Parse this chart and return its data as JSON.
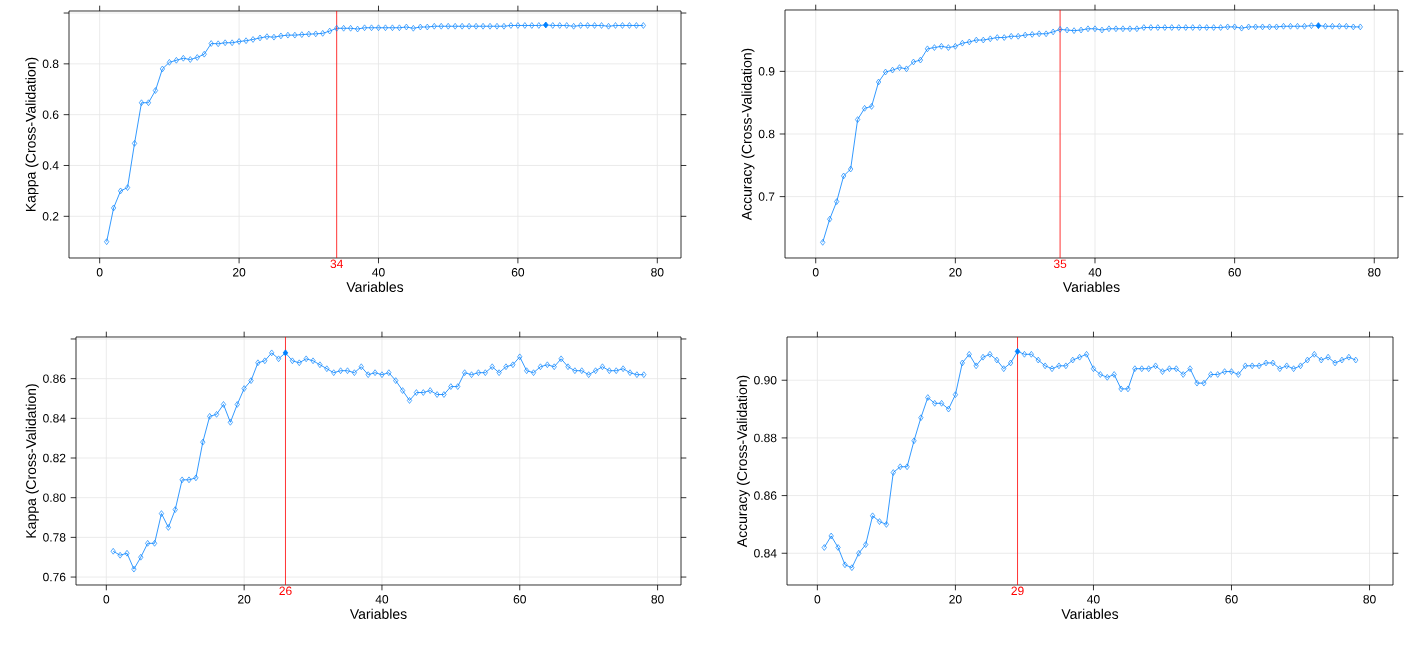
{
  "chart_data": [
    {
      "type": "line",
      "ylabel": "Kappa (Cross-Validation)",
      "xlabel": "Variables",
      "marker": "diamond",
      "line_style": "solid",
      "grid": true,
      "x": [
        1,
        2,
        3,
        4,
        5,
        6,
        7,
        8,
        9,
        10,
        11,
        12,
        13,
        14,
        15,
        16,
        17,
        18,
        19,
        20,
        21,
        22,
        23,
        24,
        25,
        26,
        27,
        28,
        29,
        30,
        31,
        32,
        33,
        34,
        35,
        36,
        37,
        38,
        39,
        40,
        41,
        42,
        43,
        44,
        45,
        46,
        47,
        48,
        49,
        50,
        51,
        52,
        53,
        54,
        55,
        56,
        57,
        58,
        59,
        60,
        61,
        62,
        63,
        64,
        65,
        66,
        67,
        68,
        69,
        70,
        71,
        72,
        73,
        74,
        75,
        76,
        77,
        78
      ],
      "xlim": [
        -4.4,
        83.4
      ],
      "xticks": [
        0,
        20,
        40,
        60,
        80
      ],
      "ylim": [
        0.036,
        1.008
      ],
      "yticks": [
        0.2,
        0.4,
        0.6,
        0.8,
        {
          "value": 1.0,
          "label": null
        }
      ],
      "series": [
        {
          "color": "#0080ff",
          "values": [
            0.1,
            0.233,
            0.3,
            0.313,
            0.487,
            0.647,
            0.647,
            0.695,
            0.78,
            0.806,
            0.814,
            0.822,
            0.817,
            0.825,
            0.838,
            0.88,
            0.879,
            0.883,
            0.883,
            0.888,
            0.891,
            0.896,
            0.902,
            0.907,
            0.905,
            0.91,
            0.913,
            0.913,
            0.915,
            0.917,
            0.918,
            0.92,
            0.929,
            0.94,
            0.94,
            0.94,
            0.937,
            0.942,
            0.942,
            0.942,
            0.942,
            0.942,
            0.942,
            0.945,
            0.94,
            0.945,
            0.945,
            0.948,
            0.948,
            0.948,
            0.948,
            0.948,
            0.948,
            0.948,
            0.948,
            0.948,
            0.948,
            0.948,
            0.951,
            0.951,
            0.951,
            0.951,
            0.951,
            0.953,
            0.951,
            0.951,
            0.951,
            0.948,
            0.951,
            0.951,
            0.951,
            0.951,
            0.948,
            0.951,
            0.951,
            0.951,
            0.951,
            0.951
          ]
        },
        {
          "type": "scatter",
          "color": "#0080ff",
          "x": [
            64
          ],
          "values": [
            0.953
          ]
        }
      ],
      "ref_lines": [
        {
          "axis": "x",
          "value": 34,
          "label": "34",
          "color": "#ff0000"
        }
      ]
    },
    {
      "type": "line",
      "ylabel": "Accuracy (Cross-Validation)",
      "xlabel": "Variables",
      "marker": "diamond",
      "line_style": "solid",
      "grid": true,
      "x": [
        1,
        2,
        3,
        4,
        5,
        6,
        7,
        8,
        9,
        10,
        11,
        12,
        13,
        14,
        15,
        16,
        17,
        18,
        19,
        20,
        21,
        22,
        23,
        24,
        25,
        26,
        27,
        28,
        29,
        30,
        31,
        32,
        33,
        34,
        35,
        36,
        37,
        38,
        39,
        40,
        41,
        42,
        43,
        44,
        45,
        46,
        47,
        48,
        49,
        50,
        51,
        52,
        53,
        54,
        55,
        56,
        57,
        58,
        59,
        60,
        61,
        62,
        63,
        64,
        65,
        66,
        67,
        68,
        69,
        70,
        71,
        72,
        73,
        74,
        75,
        76,
        77,
        78
      ],
      "xlim": [
        -4.4,
        83.4
      ],
      "xticks": [
        0,
        20,
        40,
        60,
        80
      ],
      "ylim": [
        0.602,
        0.998
      ],
      "yticks": [
        0.7,
        0.8,
        0.9
      ],
      "series": [
        {
          "color": "#0080ff",
          "values": [
            0.627,
            0.664,
            0.692,
            0.733,
            0.744,
            0.823,
            0.841,
            0.844,
            0.883,
            0.899,
            0.902,
            0.906,
            0.904,
            0.915,
            0.918,
            0.936,
            0.938,
            0.94,
            0.938,
            0.94,
            0.945,
            0.947,
            0.95,
            0.95,
            0.952,
            0.954,
            0.954,
            0.956,
            0.956,
            0.958,
            0.959,
            0.96,
            0.96,
            0.963,
            0.967,
            0.966,
            0.965,
            0.966,
            0.968,
            0.968,
            0.966,
            0.968,
            0.968,
            0.968,
            0.968,
            0.968,
            0.97,
            0.97,
            0.97,
            0.97,
            0.97,
            0.97,
            0.97,
            0.97,
            0.97,
            0.97,
            0.97,
            0.97,
            0.971,
            0.971,
            0.969,
            0.971,
            0.971,
            0.971,
            0.971,
            0.971,
            0.972,
            0.972,
            0.972,
            0.972,
            0.973,
            0.973,
            0.972,
            0.972,
            0.972,
            0.972,
            0.971,
            0.971
          ]
        },
        {
          "type": "scatter",
          "color": "#0080ff",
          "x": [
            72
          ],
          "values": [
            0.973
          ]
        }
      ],
      "ref_lines": [
        {
          "axis": "x",
          "value": 35,
          "label": "35",
          "color": "#ff0000"
        }
      ]
    },
    {
      "type": "line",
      "ylabel": "Kappa (Cross-Validation)",
      "xlabel": "Variables",
      "marker": "diamond",
      "line_style": "solid",
      "grid": true,
      "x": [
        1,
        2,
        3,
        4,
        5,
        6,
        7,
        8,
        9,
        10,
        11,
        12,
        13,
        14,
        15,
        16,
        17,
        18,
        19,
        20,
        21,
        22,
        23,
        24,
        25,
        26,
        27,
        28,
        29,
        30,
        31,
        32,
        33,
        34,
        35,
        36,
        37,
        38,
        39,
        40,
        41,
        42,
        43,
        44,
        45,
        46,
        47,
        48,
        49,
        50,
        51,
        52,
        53,
        54,
        55,
        56,
        57,
        58,
        59,
        60,
        61,
        62,
        63,
        64,
        65,
        66,
        67,
        68,
        69,
        70,
        71,
        72,
        73,
        74,
        75,
        76,
        77,
        78
      ],
      "xlim": [
        -4.4,
        83.4
      ],
      "xticks": [
        0,
        20,
        40,
        60,
        80
      ],
      "ylim": [
        0.756,
        0.881
      ],
      "yticks": [
        0.76,
        0.78,
        {
          "value": 0.8,
          "label": "0.80"
        },
        0.82,
        0.84,
        0.86,
        {
          "value": 0.88,
          "label": null
        }
      ],
      "series": [
        {
          "color": "#0080ff",
          "values": [
            0.773,
            0.771,
            0.772,
            0.764,
            0.77,
            0.777,
            0.777,
            0.792,
            0.785,
            0.794,
            0.809,
            0.809,
            0.81,
            0.828,
            0.841,
            0.842,
            0.847,
            0.838,
            0.847,
            0.855,
            0.859,
            0.868,
            0.869,
            0.873,
            0.87,
            0.873,
            0.869,
            0.868,
            0.87,
            0.869,
            0.867,
            0.865,
            0.863,
            0.864,
            0.864,
            0.863,
            0.866,
            0.862,
            0.863,
            0.862,
            0.863,
            0.859,
            0.854,
            0.849,
            0.853,
            0.853,
            0.854,
            0.852,
            0.852,
            0.856,
            0.856,
            0.863,
            0.862,
            0.863,
            0.863,
            0.866,
            0.863,
            0.866,
            0.867,
            0.871,
            0.864,
            0.863,
            0.866,
            0.867,
            0.866,
            0.87,
            0.866,
            0.864,
            0.864,
            0.862,
            0.864,
            0.866,
            0.864,
            0.864,
            0.865,
            0.863,
            0.862,
            0.862
          ]
        },
        {
          "type": "scatter",
          "color": "#0080ff",
          "x": [
            26
          ],
          "values": [
            0.873
          ]
        }
      ],
      "ref_lines": [
        {
          "axis": "x",
          "value": 26,
          "label": "26",
          "color": "#ff0000"
        }
      ]
    },
    {
      "type": "line",
      "ylabel": "Accuracy (Cross-Validation)",
      "xlabel": "Variables",
      "marker": "diamond",
      "line_style": "solid",
      "grid": true,
      "x": [
        1,
        2,
        3,
        4,
        5,
        6,
        7,
        8,
        9,
        10,
        11,
        12,
        13,
        14,
        15,
        16,
        17,
        18,
        19,
        20,
        21,
        22,
        23,
        24,
        25,
        26,
        27,
        28,
        29,
        30,
        31,
        32,
        33,
        34,
        35,
        36,
        37,
        38,
        39,
        40,
        41,
        42,
        43,
        44,
        45,
        46,
        47,
        48,
        49,
        50,
        51,
        52,
        53,
        54,
        55,
        56,
        57,
        58,
        59,
        60,
        61,
        62,
        63,
        64,
        65,
        66,
        67,
        68,
        69,
        70,
        71,
        72,
        73,
        74,
        75,
        76,
        77,
        78
      ],
      "xlim": [
        -4.4,
        83.4
      ],
      "xticks": [
        0,
        20,
        40,
        60,
        80
      ],
      "ylim": [
        0.829,
        0.915
      ],
      "yticks": [
        0.84,
        0.86,
        0.88,
        {
          "value": 0.9,
          "label": "0.90"
        }
      ],
      "series": [
        {
          "color": "#0080ff",
          "values": [
            0.842,
            0.846,
            0.842,
            0.836,
            0.835,
            0.84,
            0.843,
            0.853,
            0.851,
            0.85,
            0.868,
            0.87,
            0.87,
            0.879,
            0.887,
            0.894,
            0.892,
            0.892,
            0.89,
            0.895,
            0.906,
            0.909,
            0.905,
            0.908,
            0.909,
            0.907,
            0.904,
            0.906,
            0.91,
            0.909,
            0.909,
            0.907,
            0.905,
            0.904,
            0.905,
            0.905,
            0.907,
            0.908,
            0.909,
            0.904,
            0.902,
            0.901,
            0.902,
            0.897,
            0.897,
            0.904,
            0.904,
            0.904,
            0.905,
            0.903,
            0.904,
            0.904,
            0.902,
            0.904,
            0.899,
            0.899,
            0.902,
            0.902,
            0.903,
            0.903,
            0.902,
            0.905,
            0.905,
            0.905,
            0.906,
            0.906,
            0.904,
            0.905,
            0.904,
            0.905,
            0.907,
            0.909,
            0.907,
            0.908,
            0.906,
            0.907,
            0.908,
            0.907
          ]
        },
        {
          "type": "scatter",
          "color": "#0080ff",
          "x": [
            29
          ],
          "values": [
            0.91
          ]
        }
      ],
      "ref_lines": [
        {
          "axis": "x",
          "value": 29,
          "label": "29",
          "color": "#ff0000"
        }
      ]
    }
  ]
}
